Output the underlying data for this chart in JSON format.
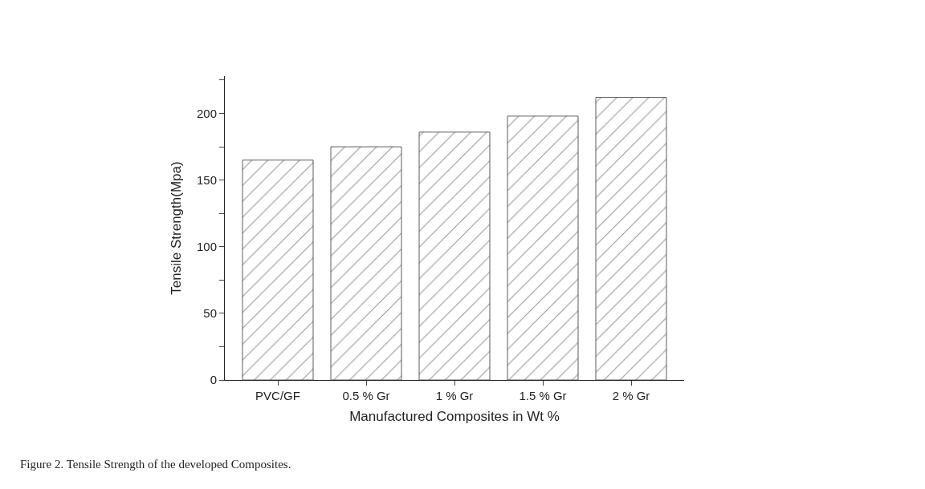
{
  "chart_data": {
    "type": "bar",
    "xlabel": "Manufactured Composites in Wt %",
    "ylabel": "Tensile Strength(Mpa)",
    "categories": [
      "PVC/GF",
      "0.5 % Gr",
      "1 % Gr",
      "1.5 % Gr",
      "2 % Gr"
    ],
    "values": [
      165,
      175,
      186,
      198,
      212
    ],
    "color": "#333333",
    "ylim": [
      0,
      228
    ],
    "yticks": [
      0,
      {
        "value": 25,
        "label": null
      },
      50,
      {
        "value": 75,
        "label": null
      },
      100,
      {
        "value": 125,
        "label": null
      },
      150,
      {
        "value": 175,
        "label": null
      },
      200,
      {
        "value": 225,
        "label": null
      }
    ],
    "legend": false,
    "annotations": [
      "Figure 2. Tensile Strength of the developed Composites."
    ]
  }
}
